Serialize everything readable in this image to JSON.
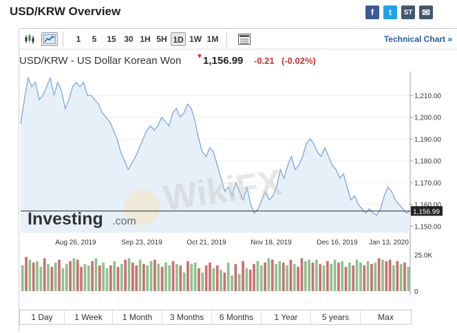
{
  "page": {
    "title": "USD/KRW Overview"
  },
  "social": [
    {
      "name": "facebook-button",
      "glyph": "f",
      "color": "#3b5998"
    },
    {
      "name": "twitter-button",
      "glyph": "t",
      "color": "#1da1f2"
    },
    {
      "name": "stocktwits-button",
      "glyph": "ST",
      "color": "#40576d"
    },
    {
      "name": "email-button",
      "glyph": "✉",
      "color": "#40576d"
    }
  ],
  "toolbar": {
    "candles_icon": "candlestick-icon",
    "line_icon": "line-chart-icon",
    "periods": [
      "1",
      "5",
      "15",
      "30",
      "1H",
      "5H",
      "1D",
      "1W",
      "1M"
    ],
    "active_period": "1D",
    "table_icon": "table-icon",
    "technical_link": "Technical Chart »"
  },
  "quote": {
    "name": "USD/KRW - US Dollar Korean Won",
    "price": "1,156.99",
    "change": "-0.21",
    "change_pct": "(-0.02%)",
    "down_color": "#d32f2f"
  },
  "watermark": {
    "brand": "Investing",
    "domain": ".com",
    "overlay": "WikiFX"
  },
  "chart_data": {
    "type": "line",
    "title": "",
    "x_ticks": [
      "Aug 26, 2019",
      "Sep 23, 2019",
      "Oct 21, 2019",
      "Nov 18, 2019",
      "Dec 16, 2019",
      "Jan 13, 2020"
    ],
    "y_ticks": [
      "1,210.00",
      "1,200.00",
      "1,190.00",
      "1,180.00",
      "1,170.00",
      "1,160.00",
      "1,150.00"
    ],
    "ylim": [
      1147,
      1221
    ],
    "current_label": "1,156.99",
    "current_value": 1156.99,
    "line_color": "#7ba7d6",
    "values": [
      1197,
      1208,
      1218,
      1214,
      1216,
      1208,
      1210,
      1214,
      1218,
      1210,
      1216,
      1212,
      1204,
      1208,
      1214,
      1216,
      1214,
      1216,
      1210,
      1210,
      1208,
      1206,
      1202,
      1200,
      1198,
      1194,
      1190,
      1184,
      1180,
      1176,
      1179,
      1182,
      1186,
      1190,
      1194,
      1196,
      1194,
      1196,
      1200,
      1198,
      1196,
      1202,
      1204,
      1200,
      1202,
      1206,
      1204,
      1198,
      1190,
      1184,
      1182,
      1186,
      1184,
      1178,
      1172,
      1166,
      1168,
      1164,
      1170,
      1166,
      1162,
      1168,
      1160,
      1156,
      1158,
      1162,
      1166,
      1162,
      1164,
      1168,
      1176,
      1172,
      1178,
      1182,
      1176,
      1178,
      1182,
      1188,
      1190,
      1188,
      1184,
      1182,
      1186,
      1182,
      1178,
      1176,
      1172,
      1174,
      1168,
      1162,
      1164,
      1160,
      1158,
      1156,
      1158,
      1156,
      1155,
      1158,
      1164,
      1168,
      1166,
      1162,
      1160,
      1158,
      1156,
      1157
    ],
    "volume_label_top": "25.0K",
    "volume_label_bottom": "0",
    "volume_up_color": "#8fc18f",
    "volume_down_color": "#cc7070",
    "volume": [
      18,
      24,
      22,
      20,
      21,
      17,
      23,
      19,
      17,
      20,
      22,
      16,
      19,
      21,
      23,
      22,
      17,
      19,
      18,
      21,
      23,
      18,
      20,
      16,
      18,
      21,
      17,
      19,
      22,
      23,
      20,
      18,
      22,
      19,
      18,
      21,
      22,
      19,
      17,
      20,
      18,
      21,
      19,
      18,
      13,
      21,
      19,
      20,
      16,
      13,
      18,
      20,
      16,
      18,
      15,
      13,
      20,
      11,
      19,
      12,
      21,
      16,
      15,
      19,
      21,
      18,
      20,
      23,
      22,
      19,
      21,
      20,
      18,
      22,
      19,
      17,
      23,
      21,
      22,
      20,
      22,
      19,
      18,
      21,
      19,
      22,
      20,
      21,
      17,
      20,
      18,
      22,
      20,
      18,
      21,
      19,
      20,
      23,
      22,
      21,
      22,
      18,
      21,
      19,
      20,
      17
    ],
    "volume_dir": [
      1,
      0,
      1,
      0,
      1,
      1,
      0,
      1,
      0,
      1,
      0,
      1,
      1,
      0,
      1,
      0,
      0,
      1,
      1,
      0,
      1,
      0,
      1,
      1,
      0,
      1,
      0,
      1,
      0,
      1,
      0,
      0,
      1,
      0,
      1,
      1,
      0,
      1,
      0,
      1,
      1,
      0,
      1,
      0,
      1,
      0,
      1,
      1,
      0,
      1,
      0,
      0,
      1,
      0,
      1,
      0,
      1,
      1,
      0,
      1,
      0,
      1,
      0,
      0,
      1,
      1,
      0,
      1,
      0,
      1,
      1,
      0,
      1,
      0,
      1,
      0,
      0,
      1,
      1,
      0,
      1,
      0,
      1,
      0,
      1,
      1,
      0,
      1,
      0,
      1,
      0,
      1,
      1,
      0,
      1,
      0,
      1,
      0,
      1,
      0,
      0,
      1,
      0,
      1,
      0,
      1
    ]
  },
  "ranges": [
    "1 Day",
    "1 Week",
    "1 Month",
    "3 Months",
    "6 Months",
    "1 Year",
    "5 years",
    "Max"
  ]
}
